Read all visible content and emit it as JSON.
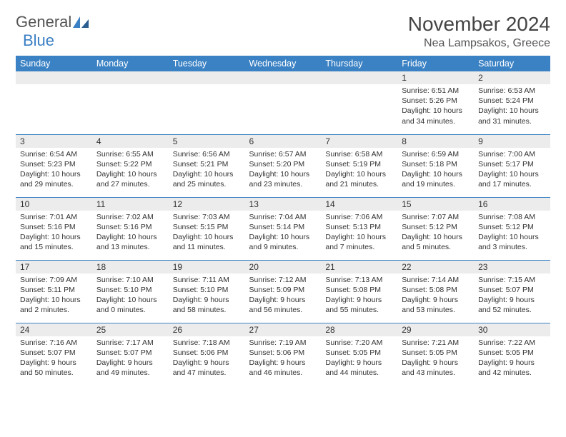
{
  "logo": {
    "text1": "General",
    "text2": "Blue"
  },
  "title": "November 2024",
  "location": "Nea Lampsakos, Greece",
  "columns": [
    "Sunday",
    "Monday",
    "Tuesday",
    "Wednesday",
    "Thursday",
    "Friday",
    "Saturday"
  ],
  "colors": {
    "header_bg": "#3b82c4",
    "header_text": "#ffffff",
    "daynum_bg": "#ececec",
    "row_border": "#3b82c4",
    "text": "#333333",
    "logo_gray": "#555555",
    "logo_blue": "#3b7fc4"
  },
  "weeks": [
    [
      null,
      null,
      null,
      null,
      null,
      {
        "num": "1",
        "sunrise": "Sunrise: 6:51 AM",
        "sunset": "Sunset: 5:26 PM",
        "daylight": "Daylight: 10 hours and 34 minutes."
      },
      {
        "num": "2",
        "sunrise": "Sunrise: 6:53 AM",
        "sunset": "Sunset: 5:24 PM",
        "daylight": "Daylight: 10 hours and 31 minutes."
      }
    ],
    [
      {
        "num": "3",
        "sunrise": "Sunrise: 6:54 AM",
        "sunset": "Sunset: 5:23 PM",
        "daylight": "Daylight: 10 hours and 29 minutes."
      },
      {
        "num": "4",
        "sunrise": "Sunrise: 6:55 AM",
        "sunset": "Sunset: 5:22 PM",
        "daylight": "Daylight: 10 hours and 27 minutes."
      },
      {
        "num": "5",
        "sunrise": "Sunrise: 6:56 AM",
        "sunset": "Sunset: 5:21 PM",
        "daylight": "Daylight: 10 hours and 25 minutes."
      },
      {
        "num": "6",
        "sunrise": "Sunrise: 6:57 AM",
        "sunset": "Sunset: 5:20 PM",
        "daylight": "Daylight: 10 hours and 23 minutes."
      },
      {
        "num": "7",
        "sunrise": "Sunrise: 6:58 AM",
        "sunset": "Sunset: 5:19 PM",
        "daylight": "Daylight: 10 hours and 21 minutes."
      },
      {
        "num": "8",
        "sunrise": "Sunrise: 6:59 AM",
        "sunset": "Sunset: 5:18 PM",
        "daylight": "Daylight: 10 hours and 19 minutes."
      },
      {
        "num": "9",
        "sunrise": "Sunrise: 7:00 AM",
        "sunset": "Sunset: 5:17 PM",
        "daylight": "Daylight: 10 hours and 17 minutes."
      }
    ],
    [
      {
        "num": "10",
        "sunrise": "Sunrise: 7:01 AM",
        "sunset": "Sunset: 5:16 PM",
        "daylight": "Daylight: 10 hours and 15 minutes."
      },
      {
        "num": "11",
        "sunrise": "Sunrise: 7:02 AM",
        "sunset": "Sunset: 5:16 PM",
        "daylight": "Daylight: 10 hours and 13 minutes."
      },
      {
        "num": "12",
        "sunrise": "Sunrise: 7:03 AM",
        "sunset": "Sunset: 5:15 PM",
        "daylight": "Daylight: 10 hours and 11 minutes."
      },
      {
        "num": "13",
        "sunrise": "Sunrise: 7:04 AM",
        "sunset": "Sunset: 5:14 PM",
        "daylight": "Daylight: 10 hours and 9 minutes."
      },
      {
        "num": "14",
        "sunrise": "Sunrise: 7:06 AM",
        "sunset": "Sunset: 5:13 PM",
        "daylight": "Daylight: 10 hours and 7 minutes."
      },
      {
        "num": "15",
        "sunrise": "Sunrise: 7:07 AM",
        "sunset": "Sunset: 5:12 PM",
        "daylight": "Daylight: 10 hours and 5 minutes."
      },
      {
        "num": "16",
        "sunrise": "Sunrise: 7:08 AM",
        "sunset": "Sunset: 5:12 PM",
        "daylight": "Daylight: 10 hours and 3 minutes."
      }
    ],
    [
      {
        "num": "17",
        "sunrise": "Sunrise: 7:09 AM",
        "sunset": "Sunset: 5:11 PM",
        "daylight": "Daylight: 10 hours and 2 minutes."
      },
      {
        "num": "18",
        "sunrise": "Sunrise: 7:10 AM",
        "sunset": "Sunset: 5:10 PM",
        "daylight": "Daylight: 10 hours and 0 minutes."
      },
      {
        "num": "19",
        "sunrise": "Sunrise: 7:11 AM",
        "sunset": "Sunset: 5:10 PM",
        "daylight": "Daylight: 9 hours and 58 minutes."
      },
      {
        "num": "20",
        "sunrise": "Sunrise: 7:12 AM",
        "sunset": "Sunset: 5:09 PM",
        "daylight": "Daylight: 9 hours and 56 minutes."
      },
      {
        "num": "21",
        "sunrise": "Sunrise: 7:13 AM",
        "sunset": "Sunset: 5:08 PM",
        "daylight": "Daylight: 9 hours and 55 minutes."
      },
      {
        "num": "22",
        "sunrise": "Sunrise: 7:14 AM",
        "sunset": "Sunset: 5:08 PM",
        "daylight": "Daylight: 9 hours and 53 minutes."
      },
      {
        "num": "23",
        "sunrise": "Sunrise: 7:15 AM",
        "sunset": "Sunset: 5:07 PM",
        "daylight": "Daylight: 9 hours and 52 minutes."
      }
    ],
    [
      {
        "num": "24",
        "sunrise": "Sunrise: 7:16 AM",
        "sunset": "Sunset: 5:07 PM",
        "daylight": "Daylight: 9 hours and 50 minutes."
      },
      {
        "num": "25",
        "sunrise": "Sunrise: 7:17 AM",
        "sunset": "Sunset: 5:07 PM",
        "daylight": "Daylight: 9 hours and 49 minutes."
      },
      {
        "num": "26",
        "sunrise": "Sunrise: 7:18 AM",
        "sunset": "Sunset: 5:06 PM",
        "daylight": "Daylight: 9 hours and 47 minutes."
      },
      {
        "num": "27",
        "sunrise": "Sunrise: 7:19 AM",
        "sunset": "Sunset: 5:06 PM",
        "daylight": "Daylight: 9 hours and 46 minutes."
      },
      {
        "num": "28",
        "sunrise": "Sunrise: 7:20 AM",
        "sunset": "Sunset: 5:05 PM",
        "daylight": "Daylight: 9 hours and 44 minutes."
      },
      {
        "num": "29",
        "sunrise": "Sunrise: 7:21 AM",
        "sunset": "Sunset: 5:05 PM",
        "daylight": "Daylight: 9 hours and 43 minutes."
      },
      {
        "num": "30",
        "sunrise": "Sunrise: 7:22 AM",
        "sunset": "Sunset: 5:05 PM",
        "daylight": "Daylight: 9 hours and 42 minutes."
      }
    ]
  ]
}
